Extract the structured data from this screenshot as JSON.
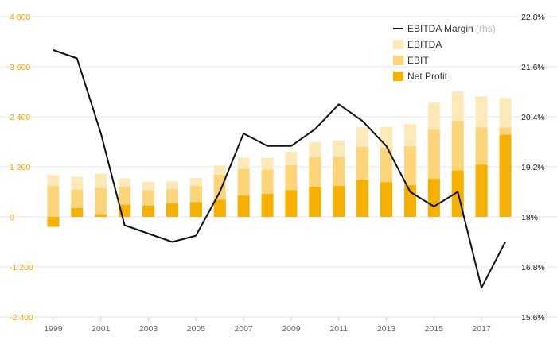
{
  "chart_data": {
    "type": "bar",
    "stacked": "overlay",
    "categories": [
      "1999",
      "2000",
      "2001",
      "2002",
      "2003",
      "2004",
      "2005",
      "2006",
      "2007",
      "2008",
      "2009",
      "2010",
      "2011",
      "2012",
      "2013",
      "2014",
      "2015",
      "2016",
      "2017",
      "2018"
    ],
    "x_tick_labels": [
      "1999",
      "2001",
      "2003",
      "2005",
      "2007",
      "2009",
      "2011",
      "2013",
      "2015",
      "2017"
    ],
    "series": [
      {
        "name": "EBITDA",
        "kind": "bar",
        "axis": "left",
        "color": "#fde8b8",
        "values": [
          1000,
          960,
          1040,
          920,
          840,
          850,
          930,
          1230,
          1420,
          1410,
          1560,
          1800,
          1830,
          2150,
          2160,
          2220,
          2740,
          3010,
          2890,
          2850
        ]
      },
      {
        "name": "EBIT",
        "kind": "bar",
        "axis": "left",
        "color": "#fcd57a",
        "values": [
          740,
          650,
          690,
          720,
          640,
          660,
          740,
          1010,
          1150,
          1130,
          1240,
          1430,
          1440,
          1680,
          1660,
          1690,
          2090,
          2300,
          2140,
          2140
        ]
      },
      {
        "name": "Net Profit",
        "kind": "bar",
        "axis": "left",
        "color": "#f5b000",
        "values": [
          -240,
          210,
          60,
          290,
          270,
          320,
          350,
          410,
          510,
          550,
          640,
          720,
          740,
          890,
          830,
          760,
          910,
          1110,
          1250,
          1970
        ]
      },
      {
        "name": "EBITDA Margin",
        "suffix": "(rhs)",
        "kind": "line",
        "axis": "right",
        "color": "#111111",
        "values": [
          22.0,
          21.8,
          20.0,
          17.8,
          17.6,
          17.4,
          17.55,
          18.6,
          20.0,
          19.7,
          19.7,
          20.1,
          20.7,
          20.3,
          19.7,
          18.6,
          18.25,
          18.6,
          16.3,
          17.4
        ]
      }
    ],
    "left_axis": {
      "ylim": [
        -2400,
        4800
      ],
      "ticks": [
        -2400,
        -1200,
        0,
        1200,
        2400,
        3600,
        4800
      ],
      "tick_labels": [
        "-2 400",
        "-1 200",
        "0",
        "1 200",
        "2 400",
        "3 600",
        "4 800"
      ]
    },
    "right_axis": {
      "ylim": [
        15.6,
        22.8
      ],
      "ticks": [
        15.6,
        16.8,
        18,
        19.2,
        20.4,
        21.6,
        22.8
      ],
      "tick_labels": [
        "15.6%",
        "16.8%",
        "18%",
        "19.2%",
        "20.4%",
        "21.6%",
        "22.8%"
      ]
    },
    "grid": true,
    "legend_position": "top-right",
    "colors": {
      "left_axis_text": "#f0a500",
      "grid": "#e6e6e6"
    }
  }
}
